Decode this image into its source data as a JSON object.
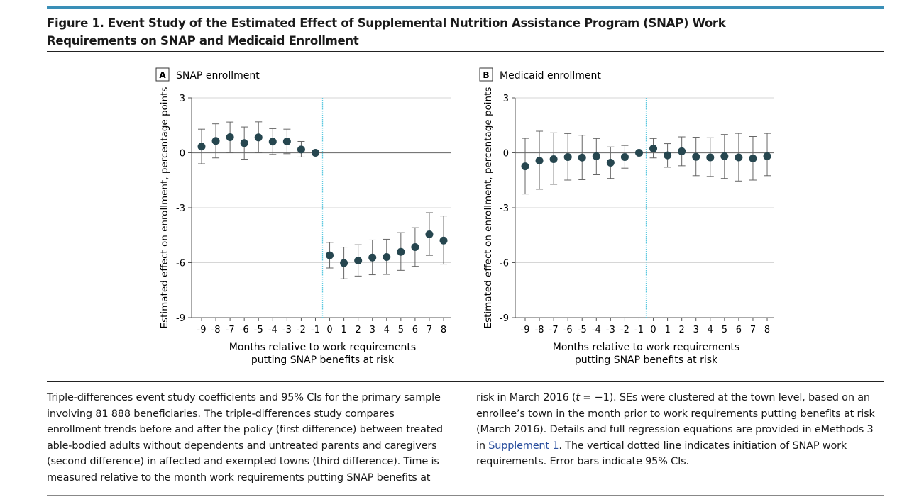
{
  "figure": {
    "title": "Figure 1. Event Study of the Estimated Effect of Supplemental Nutrition Assistance Program (SNAP) Work Requirements on SNAP and Medicaid Enrollment",
    "accent_color": "#3a8fb7",
    "point_color": "#26464f",
    "dotted_line_color": "#5bc8e0"
  },
  "caption": {
    "left": "Triple-differences event study coefficients and 95% CIs for the primary sample involving 81 888 beneficiaries. The triple-differences study compares enrollment trends before and after the policy (first difference) between treated able-bodied adults without dependents and untreated parents and caregivers (second difference) in affected and exempted towns (third difference). Time is measured relative to the month work requirements putting SNAP benefits at",
    "right_before_italic": "risk in March 2016 (",
    "right_italic": "t",
    "right_after_italic": " = −1). SEs were clustered at the town level, based on an enrollee’s town in the month prior to work requirements putting benefits at risk (March 2016). Details and full regression equations are provided in eMethods 3 in ",
    "link": "Supplement 1",
    "right_end": ". The vertical dotted line indicates initiation of SNAP work requirements. Error bars indicate 95% CIs."
  },
  "chart_data": [
    {
      "type": "scatter",
      "panel_letter": "A",
      "title": "SNAP enrollment",
      "xlabel": "Months relative to work requirements putting SNAP benefits at risk",
      "xlabel_lines": [
        "Months relative to work requirements",
        "putting SNAP benefits at risk"
      ],
      "ylabel": "Estimated effect on enrollment, percentage points",
      "x": [
        -9,
        -8,
        -7,
        -6,
        -5,
        -4,
        -3,
        -2,
        -1,
        0,
        1,
        2,
        3,
        4,
        5,
        6,
        7,
        8
      ],
      "y": [
        0.34,
        0.65,
        0.85,
        0.53,
        0.84,
        0.61,
        0.62,
        0.18,
        0,
        -5.6,
        -6.02,
        -5.89,
        -5.72,
        -5.69,
        -5.41,
        -5.15,
        -4.45,
        -4.79
      ],
      "ci_low": [
        -0.6,
        -0.28,
        0,
        -0.35,
        0,
        -0.09,
        -0.05,
        -0.23,
        0,
        -6.29,
        -6.88,
        -6.73,
        -6.66,
        -6.64,
        -6.42,
        -6.2,
        -5.6,
        -6.08
      ],
      "ci_high": [
        1.29,
        1.58,
        1.68,
        1.41,
        1.69,
        1.32,
        1.29,
        0.62,
        0,
        -4.89,
        -5.15,
        -5.02,
        -4.76,
        -4.72,
        -4.36,
        -4.09,
        -3.27,
        -3.45
      ],
      "ylim": [
        -9,
        3
      ],
      "yticks": [
        3,
        0,
        -3,
        -6,
        -9
      ],
      "ytick_labels": [
        "3",
        "0",
        "-3",
        "-6",
        "-9"
      ],
      "xtick_labels": [
        "-9",
        "-8",
        "-7",
        "-6",
        "-5",
        "-4",
        "-3",
        "-2",
        "-1",
        "0",
        "1",
        "2",
        "3",
        "4",
        "5",
        "6",
        "7",
        "8"
      ],
      "vline_x": -0.5,
      "grid": true
    },
    {
      "type": "scatter",
      "panel_letter": "B",
      "title": "Medicaid enrollment",
      "xlabel": "Months relative to work requirements putting SNAP benefits at risk",
      "xlabel_lines": [
        "Months relative to work requirements",
        "putting SNAP benefits at risk"
      ],
      "ylabel": "Estimated effect on enrollment, percentage points",
      "x": [
        -9,
        -8,
        -7,
        -6,
        -5,
        -4,
        -3,
        -2,
        -1,
        0,
        1,
        2,
        3,
        4,
        5,
        6,
        7,
        8
      ],
      "y": [
        -0.74,
        -0.43,
        -0.35,
        -0.23,
        -0.26,
        -0.19,
        -0.54,
        -0.23,
        0,
        0.23,
        -0.14,
        0.08,
        -0.22,
        -0.25,
        -0.19,
        -0.25,
        -0.31,
        -0.19
      ],
      "ci_low": [
        -2.25,
        -1.99,
        -1.72,
        -1.49,
        -1.47,
        -1.2,
        -1.4,
        -0.84,
        0,
        -0.28,
        -0.79,
        -0.71,
        -1.25,
        -1.29,
        -1.4,
        -1.54,
        -1.49,
        -1.25
      ],
      "ci_high": [
        0.79,
        1.18,
        1.09,
        1.05,
        0.96,
        0.78,
        0.32,
        0.4,
        0,
        0.78,
        0.5,
        0.87,
        0.85,
        0.82,
        1.0,
        1.06,
        0.89,
        1.06
      ],
      "ylim": [
        -9,
        3
      ],
      "yticks": [
        3,
        0,
        -3,
        -6,
        -9
      ],
      "ytick_labels": [
        "3",
        "0",
        "-3",
        "-6",
        "-9"
      ],
      "xtick_labels": [
        "-9",
        "-8",
        "-7",
        "-6",
        "-5",
        "-4",
        "-3",
        "-2",
        "-1",
        "0",
        "1",
        "2",
        "3",
        "4",
        "5",
        "6",
        "7",
        "8"
      ],
      "vline_x": -0.5,
      "grid": true
    }
  ]
}
